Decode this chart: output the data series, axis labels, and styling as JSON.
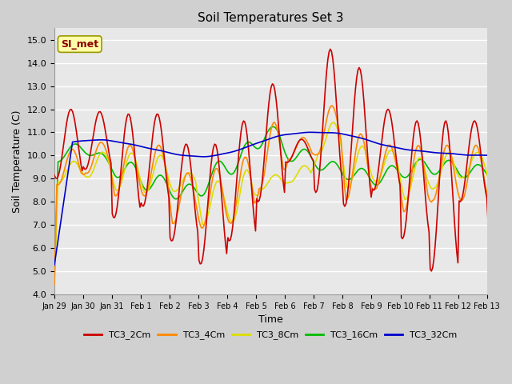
{
  "title": "Soil Temperatures Set 3",
  "xlabel": "Time",
  "ylabel": "Soil Temperature (C)",
  "ylim": [
    4.0,
    15.5
  ],
  "yticks": [
    4.0,
    5.0,
    6.0,
    7.0,
    8.0,
    9.0,
    10.0,
    11.0,
    12.0,
    13.0,
    14.0,
    15.0
  ],
  "xtick_labels": [
    "Jan 29",
    "Jan 30",
    "Jan 31",
    "Feb 1",
    "Feb 2",
    "Feb 3",
    "Feb 4",
    "Feb 5",
    "Feb 6",
    "Feb 7",
    "Feb 8",
    "Feb 9",
    "Feb 10",
    "Feb 11",
    "Feb 12",
    "Feb 13"
  ],
  "fig_bg": "#d0d0d0",
  "ax_bg": "#e8e8e8",
  "grid_color": "#ffffff",
  "legend_label": "SI_met",
  "series_colors": {
    "TC3_2Cm": "#cc0000",
    "TC3_4Cm": "#ff8800",
    "TC3_8Cm": "#dddd00",
    "TC3_16Cm": "#00bb00",
    "TC3_32Cm": "#0000cc"
  },
  "lw": 1.2
}
